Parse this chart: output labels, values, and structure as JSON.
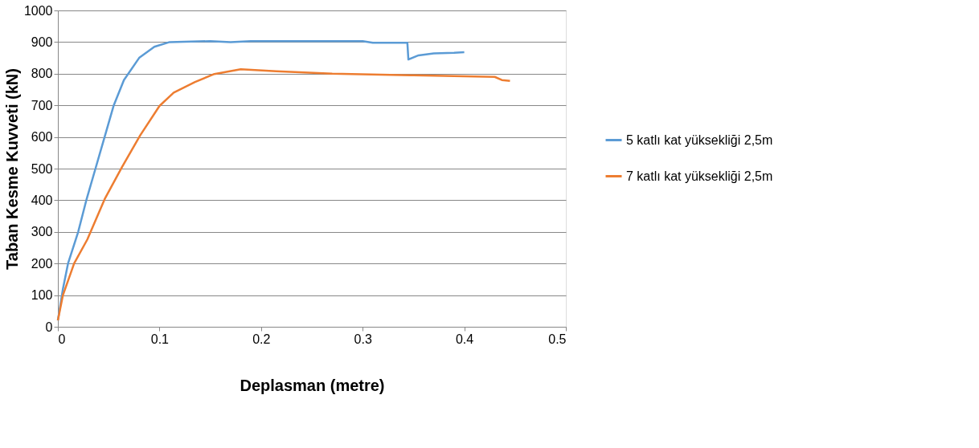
{
  "chart_data": {
    "type": "line",
    "xlabel": "Deplasman (metre)",
    "ylabel": "Taban Kesme Kuvveti (kN)",
    "xlim": [
      0,
      0.5
    ],
    "xticks": [
      0,
      0.1,
      0.2,
      0.3,
      0.4,
      0.5
    ],
    "ylim": [
      0,
      1000
    ],
    "yticks": [
      0,
      100,
      200,
      300,
      400,
      500,
      600,
      700,
      800,
      900,
      1000
    ],
    "grid": "y",
    "legend": "right",
    "marker": "none",
    "line_style": "solid",
    "series": [
      {
        "name": "5 katlı kat yüksekliği 2,5m",
        "color": "#5b9bd5",
        "x": [
          0,
          0.005,
          0.01,
          0.02,
          0.028,
          0.037,
          0.046,
          0.055,
          0.065,
          0.08,
          0.095,
          0.11,
          0.15,
          0.17,
          0.19,
          0.3,
          0.31,
          0.344,
          0.345,
          0.355,
          0.37,
          0.39,
          0.4
        ],
        "values": [
          20,
          120,
          200,
          300,
          400,
          500,
          600,
          700,
          780,
          850,
          885,
          900,
          903,
          900,
          903,
          903,
          898,
          898,
          845,
          858,
          864,
          866,
          868
        ]
      },
      {
        "name": "7 katlı kat yüksekliği 2,5m",
        "color": "#ed7d31",
        "x": [
          0,
          0.005,
          0.016,
          0.029,
          0.046,
          0.063,
          0.081,
          0.1,
          0.114,
          0.135,
          0.154,
          0.18,
          0.215,
          0.27,
          0.35,
          0.43,
          0.437,
          0.445
        ],
        "values": [
          20,
          100,
          200,
          276,
          403,
          504,
          605,
          698,
          740,
          774,
          799,
          814,
          808,
          800,
          795,
          790,
          780,
          777
        ]
      }
    ]
  }
}
